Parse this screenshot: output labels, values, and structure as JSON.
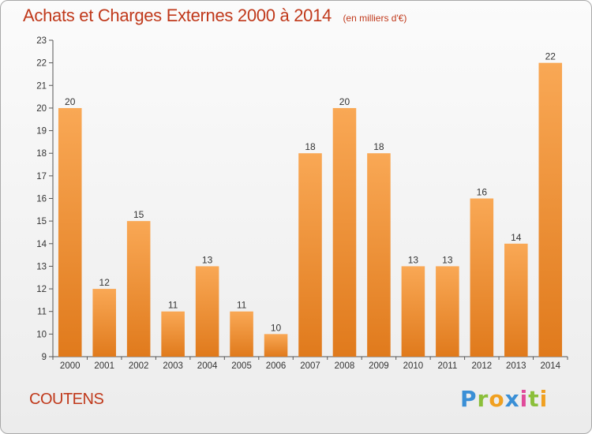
{
  "title": "Achats et Charges Externes 2000 à 2014",
  "subtitle": "(en milliers d'€)",
  "commune": "COUTENS",
  "logo": {
    "text": "Proxiti",
    "letters": [
      {
        "ch": "P",
        "color": "#3a8fd6"
      },
      {
        "ch": "r",
        "color": "#8bbf3a"
      },
      {
        "ch": "o",
        "color": "#f0a020"
      },
      {
        "ch": "x",
        "color": "#3a8fd6"
      },
      {
        "ch": "i",
        "color": "#e04a9a"
      },
      {
        "ch": "t",
        "color": "#8bbf3a"
      },
      {
        "ch": "i",
        "color": "#f0a020"
      }
    ]
  },
  "colors": {
    "title": "#c0391b",
    "bar_light": "#f9a855",
    "bar_dark": "#e07a1c"
  },
  "chart_data": {
    "type": "bar",
    "title": "Achats et Charges Externes 2000 à 2014",
    "subtitle": "(en milliers d'€)",
    "categories": [
      "2000",
      "2001",
      "2002",
      "2003",
      "2004",
      "2005",
      "2006",
      "2007",
      "2008",
      "2009",
      "2010",
      "2011",
      "2012",
      "2013",
      "2014"
    ],
    "values": [
      20,
      12,
      15,
      11,
      13,
      11,
      10,
      18,
      20,
      18,
      13,
      13,
      16,
      14,
      22
    ],
    "ylim": [
      9,
      23
    ],
    "yticks": [
      9,
      10,
      11,
      12,
      13,
      14,
      15,
      16,
      17,
      18,
      19,
      20,
      21,
      22,
      23
    ],
    "grid": false,
    "data_labels": true
  }
}
